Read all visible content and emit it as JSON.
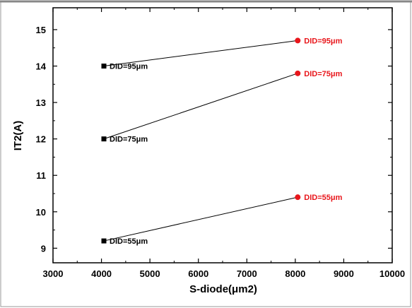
{
  "chart_data": {
    "type": "scatter",
    "xlabel": "S-diode(μm2)",
    "ylabel": "IT2(A)",
    "xlim": [
      3000,
      10000
    ],
    "ylim": [
      8.6,
      15.6
    ],
    "x_ticks": [
      3000,
      4000,
      5000,
      6000,
      7000,
      8000,
      9000,
      10000
    ],
    "y_ticks": [
      9,
      10,
      11,
      12,
      13,
      14,
      15
    ],
    "grid": false,
    "legend": "none",
    "pairs": [
      {
        "start": {
          "x": 4050,
          "y": 14.0,
          "label": "DID=95μm"
        },
        "end": {
          "x": 8050,
          "y": 14.7,
          "label": "DID=95μm"
        }
      },
      {
        "start": {
          "x": 4050,
          "y": 12.0,
          "label": "DID=75μm"
        },
        "end": {
          "x": 8050,
          "y": 13.8,
          "label": "DID=75μm"
        }
      },
      {
        "start": {
          "x": 4050,
          "y": 9.2,
          "label": "DID=55μm"
        },
        "end": {
          "x": 8050,
          "y": 10.4,
          "label": "DID=55μm"
        }
      }
    ],
    "colors": {
      "start": "#000000",
      "end": "#e8161b",
      "line": "#000000"
    }
  }
}
